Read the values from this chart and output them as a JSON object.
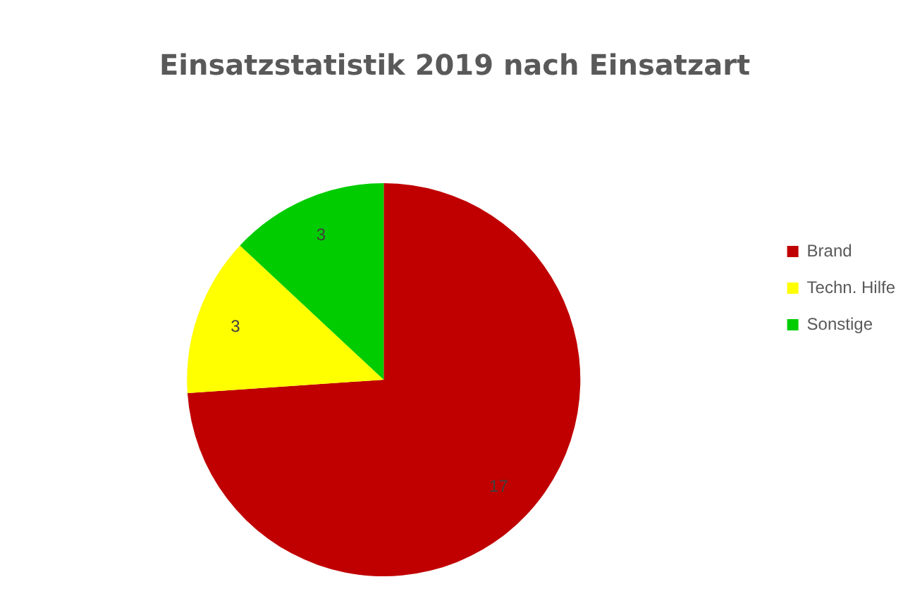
{
  "chart_data": {
    "type": "pie",
    "title": "Einsatzstatistik 2019 nach Einsatzart",
    "categories": [
      "Brand",
      "Techn. Hilfe",
      "Sonstige"
    ],
    "values": [
      17,
      3,
      3
    ],
    "colors": [
      "#c00000",
      "#ffff00",
      "#00cc00"
    ],
    "data_labels": true,
    "legend": "right"
  }
}
